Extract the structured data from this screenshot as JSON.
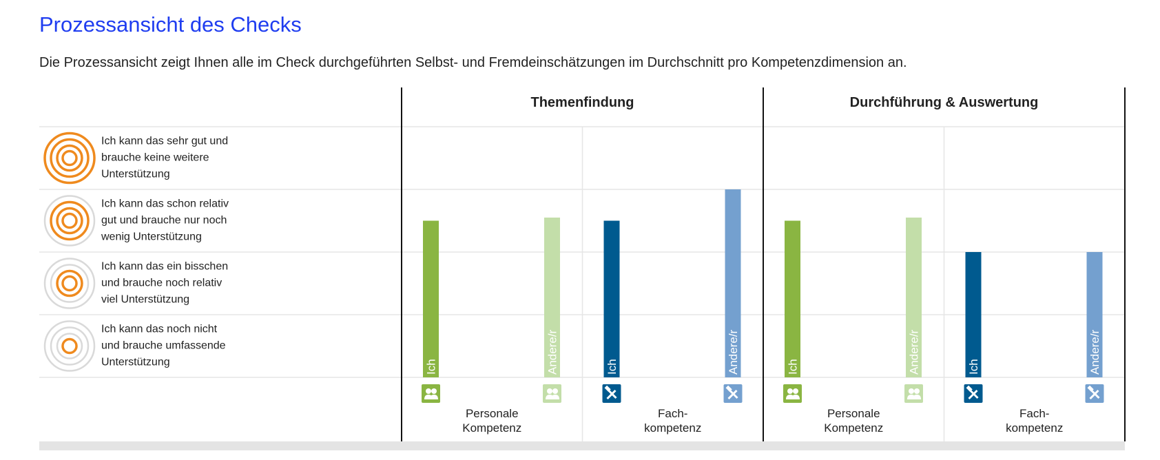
{
  "title": "Prozessansicht des Checks",
  "intro": "Die Prozessansicht zeigt Ihnen alle im Check durchgeführten Selbst- und Fremdeinschätzungen im Durchschnitt pro Kompetenzdimension an.",
  "legend": {
    "levels": [
      {
        "value": 4,
        "lines": [
          "Ich kann das sehr gut und",
          "brauche keine weitere",
          "Unterstützung"
        ]
      },
      {
        "value": 3,
        "lines": [
          "Ich kann das schon relativ",
          "gut und brauche nur noch",
          "wenig Unterstützung"
        ]
      },
      {
        "value": 2,
        "lines": [
          "Ich kann das ein bisschen",
          "und brauche noch relativ",
          "viel Unterstützung"
        ]
      },
      {
        "value": 1,
        "lines": [
          "Ich kann das noch nicht",
          "und brauche umfassende",
          "Unterstützung"
        ]
      }
    ]
  },
  "chart_data": {
    "type": "bar",
    "y_scale": {
      "min": 0,
      "max": 4
    },
    "groups": [
      {
        "title": "Themenfindung",
        "dimensions": [
          {
            "label_lines": [
              "Personale",
              "Kompetenz"
            ],
            "icon": "people-icon",
            "self_color": "#8ab542",
            "other_color": "#c3dea9",
            "self": {
              "label": "Ich",
              "value": 2.5
            },
            "other": {
              "label": "Andere/r",
              "value": 2.55
            }
          },
          {
            "label_lines": [
              "Fach-",
              "kompetenz"
            ],
            "icon": "tools-icon",
            "self_color": "#005a8f",
            "other_color": "#74a0cf",
            "self": {
              "label": "Ich",
              "value": 2.5
            },
            "other": {
              "label": "Andere/r",
              "value": 3.0
            }
          }
        ]
      },
      {
        "title": "Durchführung & Auswertung",
        "dimensions": [
          {
            "label_lines": [
              "Personale",
              "Kompetenz"
            ],
            "icon": "people-icon",
            "self_color": "#8ab542",
            "other_color": "#c3dea9",
            "self": {
              "label": "Ich",
              "value": 2.5
            },
            "other": {
              "label": "Andere/r",
              "value": 2.55
            }
          },
          {
            "label_lines": [
              "Fach-",
              "kompetenz"
            ],
            "icon": "tools-icon",
            "self_color": "#005a8f",
            "other_color": "#74a0cf",
            "self": {
              "label": "Ich",
              "value": 2.0
            },
            "other": {
              "label": "Andere/r",
              "value": 2.0
            }
          }
        ]
      }
    ]
  },
  "colors": {
    "title": "#1f3df0",
    "target_orange": "#ef8a1e",
    "target_grey": "#d9d9d9",
    "grid": "#e6e6e6",
    "footer_bar": "#e4e4e4"
  }
}
